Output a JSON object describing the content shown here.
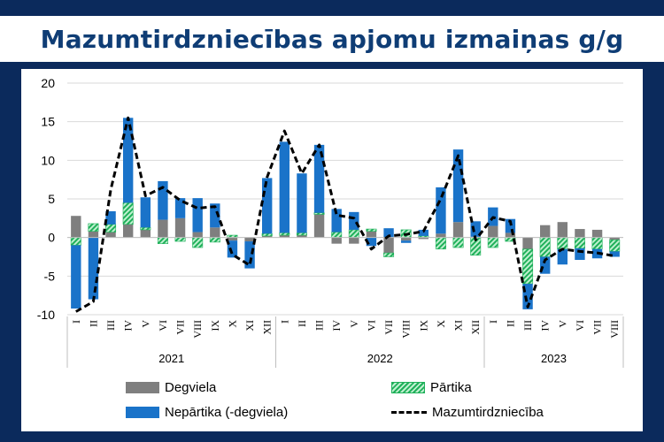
{
  "slide": {
    "title": "Mazumtirdzniecības apjomu izmaiņas g/g",
    "background_color": "#0b2a5c",
    "title_color": "#0f3d75"
  },
  "chart_data": {
    "type": "bar",
    "stacked": true,
    "title": "",
    "xlabel": "",
    "ylabel": "",
    "ylim": [
      -10,
      20
    ],
    "yticks": [
      -10,
      -5,
      0,
      5,
      10,
      15,
      20
    ],
    "grid": true,
    "legend_position": "bottom",
    "categories": [
      "I",
      "II",
      "III",
      "IV",
      "V",
      "VI",
      "VII",
      "VIII",
      "IX",
      "X",
      "XI",
      "XII",
      "I",
      "II",
      "III",
      "IV",
      "V",
      "VI",
      "VII",
      "VIII",
      "IX",
      "X",
      "XI",
      "XII",
      "I",
      "II",
      "III",
      "IV",
      "V",
      "VI",
      "VII",
      "VIII"
    ],
    "year_groups": [
      {
        "label": "2021",
        "start": 0,
        "end": 11
      },
      {
        "label": "2022",
        "start": 12,
        "end": 23
      },
      {
        "label": "2023",
        "start": 24,
        "end": 31
      }
    ],
    "series": [
      {
        "name": "Degviela",
        "color": "#7f7f7f",
        "values": [
          2.8,
          0.8,
          0.7,
          1.7,
          1.0,
          2.3,
          2.5,
          0.7,
          1.3,
          -0.4,
          -0.5,
          0.2,
          0.3,
          0.3,
          3.0,
          -0.8,
          -0.8,
          0.8,
          -2.0,
          -0.4,
          -0.2,
          0.5,
          2.0,
          0.1,
          1.5,
          0.6,
          -1.5,
          1.6,
          2.0,
          1.1,
          1.0,
          -0.3
        ]
      },
      {
        "name": "Pārtika",
        "color": "#1fb05a",
        "values": [
          -1.0,
          1.0,
          1.0,
          2.8,
          0.3,
          -0.8,
          -0.5,
          -1.3,
          -0.6,
          0.3,
          0.0,
          0.3,
          0.3,
          0.3,
          0.2,
          0.7,
          1.0,
          0.3,
          -0.5,
          1.0,
          0.2,
          -1.5,
          -1.3,
          -2.3,
          -1.3,
          -0.5,
          -4.5,
          -2.5,
          -1.5,
          -1.4,
          -1.5,
          -1.5
        ]
      },
      {
        "name": "Nepārtika (-degviela)",
        "color": "#1a73c9",
        "values": [
          -8.2,
          -8.0,
          1.7,
          11.0,
          3.9,
          5.0,
          2.6,
          4.4,
          3.1,
          -2.2,
          -3.5,
          7.2,
          11.8,
          7.7,
          8.8,
          3.0,
          2.3,
          -1.1,
          1.2,
          -0.3,
          0.8,
          6.0,
          9.4,
          2.0,
          2.4,
          1.8,
          -3.3,
          -2.2,
          -2.0,
          -1.5,
          -1.2,
          -0.7
        ]
      }
    ],
    "line": {
      "name": "Mazumtirdzniecība",
      "color": "#000000",
      "style": "dashed",
      "values": [
        -9.6,
        -8.3,
        6.2,
        15.5,
        5.4,
        6.5,
        4.8,
        3.8,
        4.0,
        -2.2,
        -3.6,
        7.8,
        13.8,
        8.3,
        12.0,
        2.9,
        2.5,
        -1.5,
        0.2,
        0.4,
        0.8,
        5.0,
        10.6,
        -0.3,
        2.6,
        2.1,
        -9.0,
        -2.9,
        -1.5,
        -1.8,
        -2.0,
        -2.4
      ]
    }
  }
}
